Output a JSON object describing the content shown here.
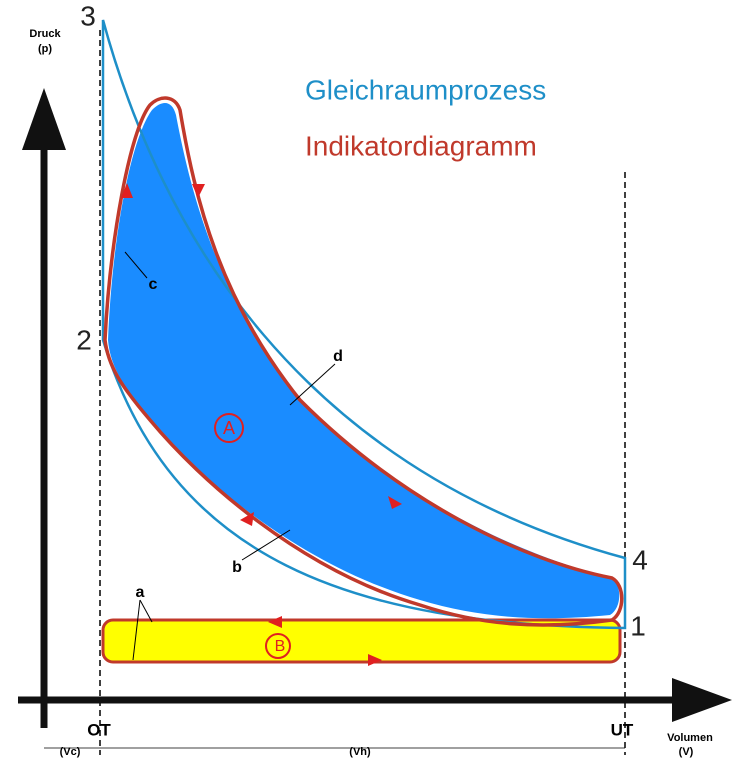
{
  "axes": {
    "y_label": "Druck",
    "y_unit": "(p)",
    "x_label": "Volumen",
    "x_unit": "(V)"
  },
  "points": [
    "3",
    "2",
    "4",
    "1"
  ],
  "legend": [
    {
      "label": "Gleichraumprozess"
    },
    {
      "label": "Indikatordiagramm"
    }
  ],
  "curve_labels": [
    "c",
    "d",
    "b",
    "a"
  ],
  "areas": [
    "A",
    "B"
  ],
  "positions": [
    "OT",
    "UT"
  ],
  "volumes": [
    "(Vc)",
    "(Vh)"
  ]
}
